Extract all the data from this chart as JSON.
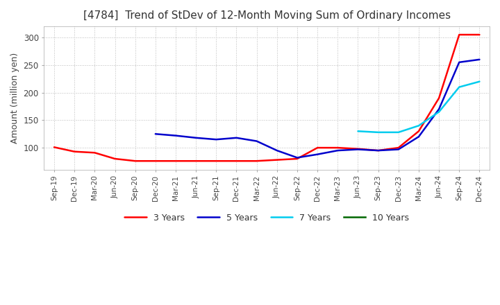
{
  "title": "[4784]  Trend of StDev of 12-Month Moving Sum of Ordinary Incomes",
  "ylabel": "Amount (million yen)",
  "background_color": "#ffffff",
  "plot_bg_color": "#ffffff",
  "grid_color": "#bbbbbb",
  "line_colors": {
    "3yr": "#ff0000",
    "5yr": "#0000cc",
    "7yr": "#00ccee",
    "10yr": "#006600"
  },
  "legend_labels": [
    "3 Years",
    "5 Years",
    "7 Years",
    "10 Years"
  ],
  "x_labels": [
    "Sep-19",
    "Dec-19",
    "Mar-20",
    "Jun-20",
    "Sep-20",
    "Dec-20",
    "Mar-21",
    "Jun-21",
    "Sep-21",
    "Dec-21",
    "Mar-22",
    "Jun-22",
    "Sep-22",
    "Dec-22",
    "Mar-23",
    "Jun-23",
    "Sep-23",
    "Dec-23",
    "Mar-24",
    "Jun-24",
    "Sep-24",
    "Dec-24"
  ],
  "ylim": [
    60,
    320
  ],
  "yticks": [
    100,
    150,
    200,
    250,
    300
  ],
  "series_3yr": [
    101,
    93,
    91,
    80,
    76,
    76,
    76,
    76,
    76,
    76,
    76,
    78,
    80,
    100,
    100,
    98,
    95,
    100,
    130,
    190,
    305,
    305
  ],
  "series_5yr": [
    null,
    null,
    null,
    null,
    null,
    125,
    122,
    118,
    115,
    118,
    112,
    95,
    82,
    88,
    95,
    97,
    95,
    97,
    120,
    170,
    255,
    260
  ],
  "series_7yr": [
    null,
    null,
    null,
    null,
    null,
    null,
    null,
    null,
    null,
    null,
    null,
    null,
    null,
    null,
    null,
    130,
    128,
    128,
    140,
    165,
    210,
    220
  ],
  "series_10yr": []
}
